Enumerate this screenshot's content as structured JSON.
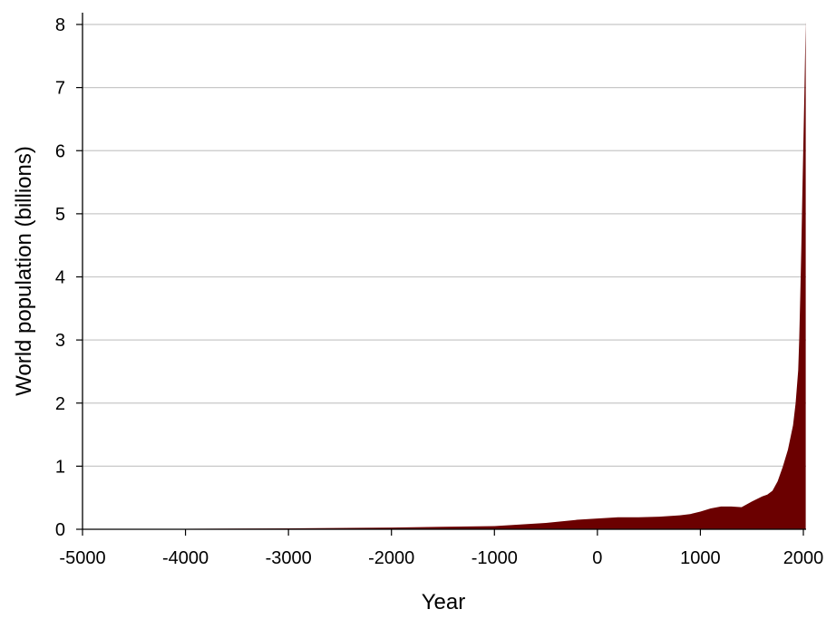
{
  "chart_data": {
    "type": "area",
    "title": "",
    "xlabel": "Year",
    "ylabel": "World population (billions)",
    "xlim": [
      -5000,
      2030
    ],
    "ylim": [
      0,
      8.2
    ],
    "xticks": [
      -5000,
      -4000,
      -3000,
      -2000,
      -1000,
      0,
      1000,
      2000
    ],
    "yticks": [
      0,
      1,
      2,
      3,
      4,
      5,
      6,
      7,
      8
    ],
    "grid": "horizontal",
    "fill_color": "#6b0000",
    "grid_color": "#c8c8c8",
    "x": [
      -5000,
      -4000,
      -3000,
      -2000,
      -1500,
      -1000,
      -500,
      -200,
      0,
      200,
      400,
      600,
      800,
      900,
      1000,
      1100,
      1200,
      1300,
      1400,
      1500,
      1600,
      1650,
      1700,
      1750,
      1800,
      1850,
      1900,
      1925,
      1950,
      1960,
      1970,
      1980,
      1990,
      2000,
      2010,
      2020,
      2023
    ],
    "y": [
      0.005,
      0.007,
      0.014,
      0.027,
      0.04,
      0.05,
      0.1,
      0.15,
      0.17,
      0.19,
      0.19,
      0.2,
      0.22,
      0.24,
      0.28,
      0.33,
      0.36,
      0.36,
      0.35,
      0.44,
      0.52,
      0.55,
      0.61,
      0.76,
      0.99,
      1.26,
      1.65,
      2.0,
      2.52,
      3.02,
      3.7,
      4.44,
      5.3,
      6.1,
      6.9,
      7.8,
      8.05
    ]
  }
}
